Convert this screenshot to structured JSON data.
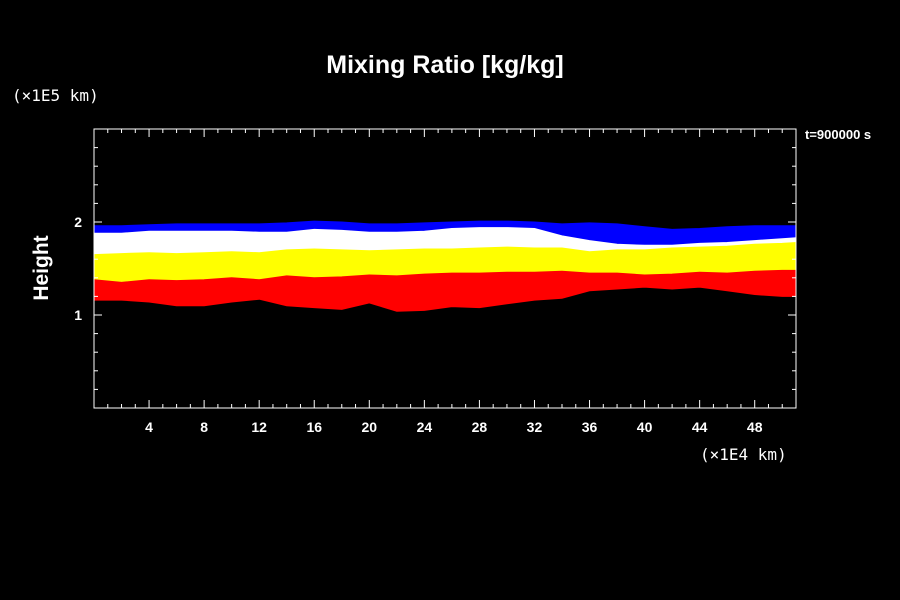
{
  "chart_data": {
    "type": "area",
    "title": "Mixing Ratio [kg/kg]",
    "ylabel": "Height",
    "x_unit": "(×1E4 km)",
    "y_unit": "(×1E5 km)",
    "time_label": "t=900000 s",
    "xlim": [
      0,
      51
    ],
    "ylim": [
      0,
      3
    ],
    "x_ticks": [
      4,
      8,
      12,
      16,
      20,
      24,
      28,
      32,
      36,
      40,
      44,
      48
    ],
    "y_ticks": [
      1,
      2
    ],
    "x": [
      0,
      2,
      4,
      6,
      8,
      10,
      12,
      14,
      16,
      18,
      20,
      22,
      24,
      26,
      28,
      30,
      32,
      34,
      36,
      38,
      40,
      42,
      44,
      46,
      48,
      50,
      51
    ],
    "series": [
      {
        "color": "#0000ff",
        "lower": [
          1.88,
          1.88,
          1.9,
          1.9,
          1.9,
          1.9,
          1.89,
          1.89,
          1.92,
          1.91,
          1.89,
          1.89,
          1.9,
          1.93,
          1.94,
          1.94,
          1.93,
          1.85,
          1.8,
          1.76,
          1.75,
          1.75,
          1.77,
          1.78,
          1.8,
          1.82,
          1.83
        ],
        "upper": [
          1.96,
          1.96,
          1.97,
          1.98,
          1.98,
          1.98,
          1.98,
          1.99,
          2.01,
          2.0,
          1.98,
          1.98,
          1.99,
          2.0,
          2.01,
          2.01,
          2.0,
          1.98,
          1.99,
          1.98,
          1.95,
          1.92,
          1.93,
          1.95,
          1.96,
          1.96,
          1.96
        ]
      },
      {
        "color": "#ffffff",
        "lower": [
          1.65,
          1.66,
          1.67,
          1.66,
          1.67,
          1.68,
          1.67,
          1.7,
          1.71,
          1.7,
          1.69,
          1.7,
          1.71,
          1.71,
          1.72,
          1.73,
          1.72,
          1.72,
          1.68,
          1.7,
          1.7,
          1.72,
          1.73,
          1.74,
          1.76,
          1.77,
          1.78
        ],
        "upper": [
          1.88,
          1.88,
          1.9,
          1.9,
          1.9,
          1.9,
          1.89,
          1.89,
          1.92,
          1.91,
          1.89,
          1.89,
          1.9,
          1.93,
          1.94,
          1.94,
          1.93,
          1.85,
          1.8,
          1.76,
          1.75,
          1.75,
          1.77,
          1.78,
          1.8,
          1.82,
          1.83
        ]
      },
      {
        "color": "#ffff00",
        "lower": [
          1.38,
          1.35,
          1.38,
          1.37,
          1.38,
          1.4,
          1.38,
          1.42,
          1.4,
          1.41,
          1.43,
          1.42,
          1.44,
          1.45,
          1.45,
          1.46,
          1.46,
          1.47,
          1.45,
          1.45,
          1.43,
          1.44,
          1.46,
          1.45,
          1.47,
          1.48,
          1.48
        ],
        "upper": [
          1.65,
          1.66,
          1.67,
          1.66,
          1.67,
          1.68,
          1.67,
          1.7,
          1.71,
          1.7,
          1.69,
          1.7,
          1.71,
          1.71,
          1.72,
          1.73,
          1.72,
          1.72,
          1.68,
          1.7,
          1.7,
          1.72,
          1.73,
          1.74,
          1.76,
          1.77,
          1.78
        ]
      },
      {
        "color": "#ff0000",
        "lower": [
          1.16,
          1.16,
          1.14,
          1.1,
          1.1,
          1.14,
          1.17,
          1.1,
          1.08,
          1.06,
          1.13,
          1.04,
          1.05,
          1.09,
          1.08,
          1.12,
          1.16,
          1.18,
          1.26,
          1.28,
          1.3,
          1.28,
          1.3,
          1.26,
          1.22,
          1.2,
          1.2
        ],
        "upper": [
          1.38,
          1.35,
          1.38,
          1.37,
          1.38,
          1.4,
          1.38,
          1.42,
          1.4,
          1.41,
          1.43,
          1.42,
          1.44,
          1.45,
          1.45,
          1.46,
          1.46,
          1.47,
          1.45,
          1.45,
          1.43,
          1.44,
          1.46,
          1.45,
          1.47,
          1.48,
          1.48
        ]
      }
    ],
    "grid": false,
    "background": "#000000",
    "axis_color": "#ffffff"
  }
}
